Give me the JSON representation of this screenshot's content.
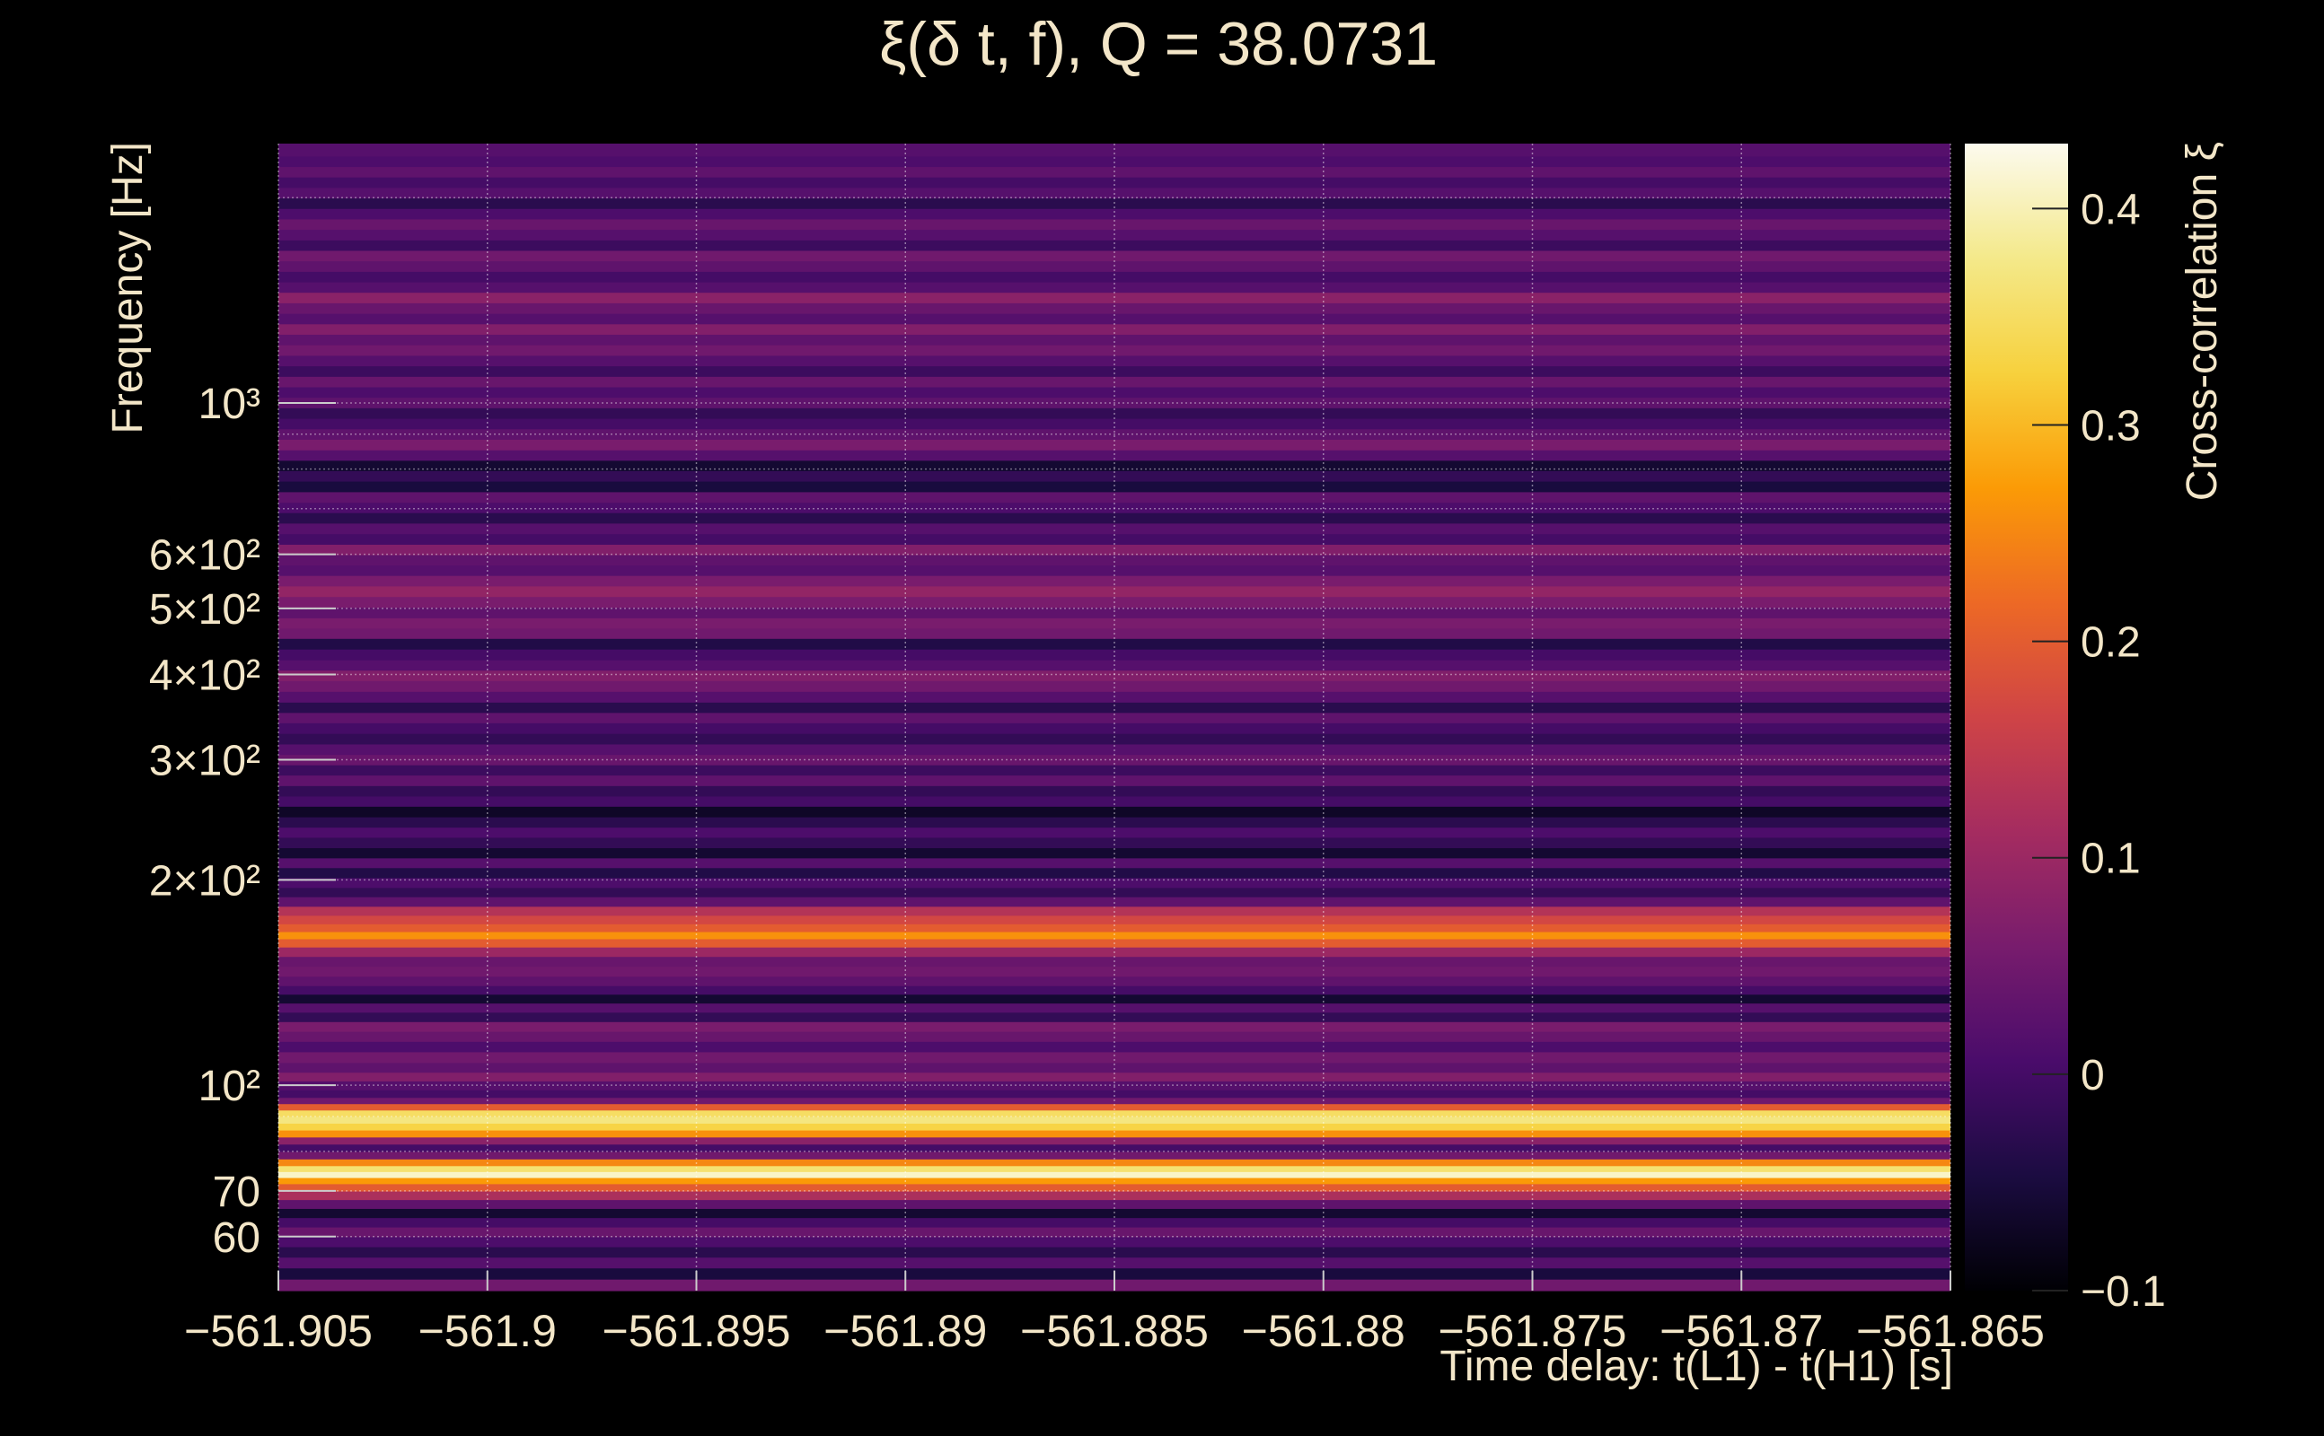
{
  "chart_data": {
    "type": "heatmap",
    "title": "ξ(δ t, f), Q = 38.0731",
    "xlabel": "Time delay: t(L1) - t(H1) [s]",
    "ylabel": "Frequency [Hz]",
    "colorbar_label": "Cross-correlation ξ",
    "colorscale": "inferno",
    "xlim": [
      -561.905,
      -561.865
    ],
    "ylim": [
      50,
      2400
    ],
    "yscale": "log",
    "clim": [
      -0.1,
      0.43
    ],
    "grid": true,
    "x_ticks": [
      {
        "value": -561.905,
        "label": "−561.905"
      },
      {
        "value": -561.9,
        "label": "−561.9"
      },
      {
        "value": -561.895,
        "label": "−561.895"
      },
      {
        "value": -561.89,
        "label": "−561.89"
      },
      {
        "value": -561.885,
        "label": "−561.885"
      },
      {
        "value": -561.88,
        "label": "−561.88"
      },
      {
        "value": -561.875,
        "label": "−561.875"
      },
      {
        "value": -561.87,
        "label": "−561.87"
      },
      {
        "value": -561.865,
        "label": "−561.865"
      }
    ],
    "y_ticks": [
      {
        "value": 60,
        "label": "60"
      },
      {
        "value": 70,
        "label": "70"
      },
      {
        "value": 100,
        "label": "10²"
      },
      {
        "value": 200,
        "label": "2×10²"
      },
      {
        "value": 300,
        "label": "3×10²"
      },
      {
        "value": 400,
        "label": "4×10²"
      },
      {
        "value": 500,
        "label": "5×10²"
      },
      {
        "value": 600,
        "label": "6×10²"
      },
      {
        "value": 1000,
        "label": "10³"
      }
    ],
    "colorbar_ticks": [
      {
        "value": -0.1,
        "label": "−0.1"
      },
      {
        "value": 0,
        "label": "0"
      },
      {
        "value": 0.1,
        "label": "0.1"
      },
      {
        "value": 0.2,
        "label": "0.2"
      },
      {
        "value": 0.3,
        "label": "0.3"
      },
      {
        "value": 0.4,
        "label": "0.4"
      }
    ],
    "bands": [
      {
        "f": 51,
        "v": 0.05
      },
      {
        "f": 53,
        "v": -0.05
      },
      {
        "f": 55,
        "v": 0.02
      },
      {
        "f": 57,
        "v": -0.03
      },
      {
        "f": 59,
        "v": 0.01
      },
      {
        "f": 61,
        "v": 0.04
      },
      {
        "f": 63,
        "v": 0.0
      },
      {
        "f": 65,
        "v": -0.06
      },
      {
        "f": 67,
        "v": 0.03
      },
      {
        "f": 69,
        "v": 0.12
      },
      {
        "f": 71,
        "v": 0.2
      },
      {
        "f": 72.5,
        "v": 0.27
      },
      {
        "f": 74,
        "v": 0.41
      },
      {
        "f": 75.5,
        "v": 0.36
      },
      {
        "f": 77,
        "v": 0.25
      },
      {
        "f": 79,
        "v": 0.05
      },
      {
        "f": 81,
        "v": 0.0
      },
      {
        "f": 83,
        "v": 0.08
      },
      {
        "f": 85,
        "v": 0.26
      },
      {
        "f": 87,
        "v": 0.33
      },
      {
        "f": 89,
        "v": 0.37
      },
      {
        "f": 91,
        "v": 0.35
      },
      {
        "f": 93,
        "v": 0.2
      },
      {
        "f": 95,
        "v": 0.05
      },
      {
        "f": 97,
        "v": 0.0
      },
      {
        "f": 100,
        "v": 0.02
      },
      {
        "f": 103,
        "v": 0.07
      },
      {
        "f": 106,
        "v": 0.03
      },
      {
        "f": 110,
        "v": 0.05
      },
      {
        "f": 114,
        "v": 0.01
      },
      {
        "f": 118,
        "v": 0.04
      },
      {
        "f": 122,
        "v": 0.06
      },
      {
        "f": 126,
        "v": -0.02
      },
      {
        "f": 130,
        "v": 0.02
      },
      {
        "f": 134,
        "v": -0.06
      },
      {
        "f": 138,
        "v": 0.0
      },
      {
        "f": 142,
        "v": 0.03
      },
      {
        "f": 147,
        "v": 0.05
      },
      {
        "f": 152,
        "v": 0.04
      },
      {
        "f": 157,
        "v": 0.1
      },
      {
        "f": 162,
        "v": 0.2
      },
      {
        "f": 166,
        "v": 0.26
      },
      {
        "f": 170,
        "v": 0.2
      },
      {
        "f": 175,
        "v": 0.17
      },
      {
        "f": 180,
        "v": 0.13
      },
      {
        "f": 186,
        "v": 0.03
      },
      {
        "f": 192,
        "v": -0.02
      },
      {
        "f": 198,
        "v": 0.01
      },
      {
        "f": 205,
        "v": -0.04
      },
      {
        "f": 212,
        "v": 0.02
      },
      {
        "f": 219,
        "v": -0.06
      },
      {
        "f": 227,
        "v": -0.02
      },
      {
        "f": 235,
        "v": 0.01
      },
      {
        "f": 243,
        "v": -0.03
      },
      {
        "f": 252,
        "v": -0.07
      },
      {
        "f": 261,
        "v": 0.0
      },
      {
        "f": 270,
        "v": -0.02
      },
      {
        "f": 280,
        "v": 0.03
      },
      {
        "f": 290,
        "v": -0.01
      },
      {
        "f": 300,
        "v": 0.04
      },
      {
        "f": 311,
        "v": 0.02
      },
      {
        "f": 322,
        "v": -0.02
      },
      {
        "f": 334,
        "v": 0.0
      },
      {
        "f": 346,
        "v": 0.03
      },
      {
        "f": 358,
        "v": -0.03
      },
      {
        "f": 371,
        "v": 0.02
      },
      {
        "f": 385,
        "v": 0.05
      },
      {
        "f": 399,
        "v": 0.07
      },
      {
        "f": 413,
        "v": 0.02
      },
      {
        "f": 428,
        "v": 0.0
      },
      {
        "f": 444,
        "v": -0.04
      },
      {
        "f": 460,
        "v": 0.05
      },
      {
        "f": 476,
        "v": 0.06
      },
      {
        "f": 493,
        "v": 0.03
      },
      {
        "f": 511,
        "v": 0.06
      },
      {
        "f": 530,
        "v": 0.09
      },
      {
        "f": 549,
        "v": 0.06
      },
      {
        "f": 569,
        "v": 0.02
      },
      {
        "f": 589,
        "v": 0.03
      },
      {
        "f": 610,
        "v": 0.07
      },
      {
        "f": 632,
        "v": 0.0
      },
      {
        "f": 655,
        "v": 0.02
      },
      {
        "f": 679,
        "v": -0.03
      },
      {
        "f": 703,
        "v": 0.01
      },
      {
        "f": 728,
        "v": 0.03
      },
      {
        "f": 755,
        "v": -0.05
      },
      {
        "f": 782,
        "v": -0.02
      },
      {
        "f": 810,
        "v": -0.06
      },
      {
        "f": 839,
        "v": 0.02
      },
      {
        "f": 869,
        "v": 0.06
      },
      {
        "f": 901,
        "v": 0.03
      },
      {
        "f": 933,
        "v": 0.0
      },
      {
        "f": 967,
        "v": -0.02
      },
      {
        "f": 1002,
        "v": 0.03
      },
      {
        "f": 1038,
        "v": 0.01
      },
      {
        "f": 1075,
        "v": 0.04
      },
      {
        "f": 1114,
        "v": -0.01
      },
      {
        "f": 1154,
        "v": 0.02
      },
      {
        "f": 1196,
        "v": 0.05
      },
      {
        "f": 1239,
        "v": 0.03
      },
      {
        "f": 1284,
        "v": 0.07
      },
      {
        "f": 1330,
        "v": 0.02
      },
      {
        "f": 1378,
        "v": 0.04
      },
      {
        "f": 1428,
        "v": 0.08
      },
      {
        "f": 1479,
        "v": 0.02
      },
      {
        "f": 1532,
        "v": 0.0
      },
      {
        "f": 1588,
        "v": 0.03
      },
      {
        "f": 1645,
        "v": 0.05
      },
      {
        "f": 1704,
        "v": -0.01
      },
      {
        "f": 1765,
        "v": 0.02
      },
      {
        "f": 1829,
        "v": 0.04
      },
      {
        "f": 1895,
        "v": 0.01
      },
      {
        "f": 1963,
        "v": -0.03
      },
      {
        "f": 2034,
        "v": 0.02
      },
      {
        "f": 2107,
        "v": 0.0
      },
      {
        "f": 2183,
        "v": 0.03
      },
      {
        "f": 2262,
        "v": 0.01
      },
      {
        "f": 2343,
        "v": 0.02
      }
    ]
  }
}
